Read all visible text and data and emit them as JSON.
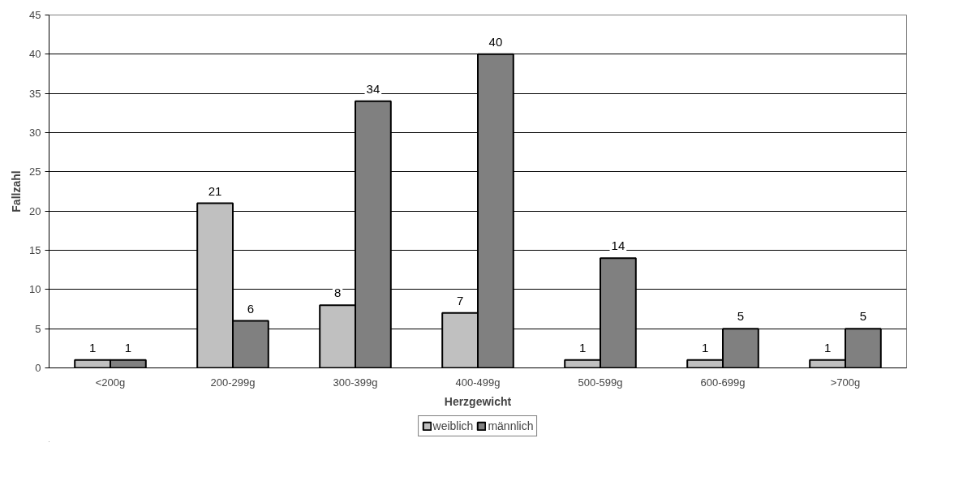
{
  "chart_data": {
    "type": "bar",
    "xlabel": "Herzgewicht",
    "ylabel": "Fallzahl",
    "categories": [
      "<200g",
      "200-299g",
      "300-399g",
      "400-499g",
      "500-599g",
      "600-699g",
      ">700g"
    ],
    "series": [
      {
        "name": "weiblich",
        "color": "#c0c0c0",
        "values": [
          1,
          21,
          8,
          7,
          1,
          1,
          1
        ]
      },
      {
        "name": "männlich",
        "color": "#808080",
        "values": [
          1,
          6,
          34,
          40,
          14,
          5,
          5
        ]
      }
    ],
    "ylim": [
      0,
      45
    ],
    "yticks": [
      0,
      5,
      10,
      15,
      20,
      25,
      30,
      35,
      40,
      45
    ],
    "grid": "y",
    "legend": "bottom",
    "data_labels": true
  }
}
